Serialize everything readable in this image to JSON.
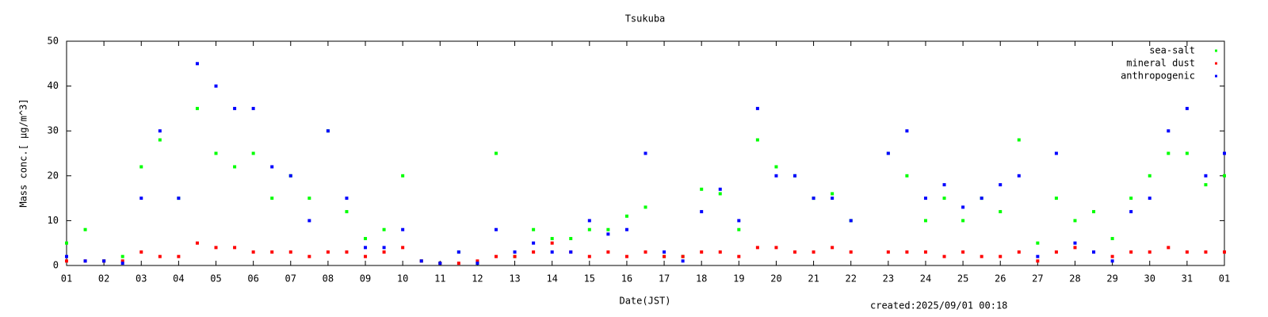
{
  "chart_data": {
    "type": "scatter",
    "title": "Tsukuba",
    "x_label": "Date(JST)",
    "y_label": "Mass conc.[ μg/m^3]",
    "footnote": "created:2025/09/01 00:18",
    "legend": "upper right",
    "x": [
      1,
      1.5,
      2,
      2.5,
      3,
      3.5,
      4,
      4.5,
      5,
      5.5,
      6,
      6.5,
      7,
      7.5,
      8,
      8.5,
      9,
      9.5,
      10,
      10.5,
      11,
      11.5,
      12,
      12.5,
      13,
      13.5,
      14,
      14.5,
      15,
      15.5,
      16,
      16.5,
      17,
      17.5,
      18,
      18.5,
      19,
      19.5,
      20,
      20.5,
      21,
      21.5,
      22,
      22.5,
      23,
      23.5,
      24,
      24.5,
      25,
      25.5,
      26,
      26.5,
      27,
      27.5,
      28,
      28.5,
      29,
      29.5,
      30,
      30.5,
      31,
      31.5,
      32
    ],
    "series": [
      {
        "name": "sea-salt",
        "color": "#00ff00",
        "values": [
          5,
          8,
          1,
          2,
          22,
          28,
          15,
          35,
          25,
          22,
          25,
          15,
          20,
          15,
          30,
          12,
          6,
          8,
          20,
          1,
          0.5,
          3,
          0.5,
          25,
          2,
          8,
          6,
          6,
          8,
          8,
          11,
          13,
          2,
          2,
          17,
          16,
          8,
          28,
          22,
          20,
          15,
          16,
          10,
          null,
          25,
          20,
          10,
          15,
          10,
          15,
          12,
          28,
          5,
          15,
          10,
          12,
          6,
          15,
          20,
          25,
          25,
          18,
          20
        ]
      },
      {
        "name": "mineral dust",
        "color": "#ff0000",
        "values": [
          1,
          1,
          1,
          1,
          3,
          2,
          2,
          5,
          4,
          4,
          3,
          3,
          3,
          2,
          3,
          3,
          2,
          3,
          4,
          1,
          0.5,
          0.5,
          1,
          2,
          2,
          3,
          5,
          3,
          2,
          3,
          2,
          3,
          2,
          2,
          3,
          3,
          2,
          4,
          4,
          3,
          3,
          4,
          3,
          null,
          3,
          3,
          3,
          2,
          3,
          2,
          2,
          3,
          1,
          3,
          4,
          3,
          2,
          3,
          3,
          4,
          3,
          3,
          3
        ]
      },
      {
        "name": "anthropogenic",
        "color": "#0000ff",
        "values": [
          2,
          1,
          1,
          0.5,
          15,
          30,
          15,
          45,
          40,
          35,
          35,
          22,
          20,
          10,
          30,
          15,
          4,
          4,
          8,
          1,
          0.5,
          3,
          0.5,
          8,
          3,
          5,
          3,
          3,
          10,
          7,
          8,
          25,
          3,
          1,
          12,
          17,
          10,
          35,
          20,
          20,
          15,
          15,
          10,
          null,
          25,
          30,
          15,
          18,
          13,
          15,
          18,
          20,
          2,
          25,
          5,
          3,
          1,
          12,
          15,
          30,
          35,
          20,
          25
        ]
      }
    ],
    "xlim": [
      1,
      32
    ],
    "ylim": [
      0,
      50
    ],
    "yticks": [
      0,
      10,
      20,
      30,
      40,
      50
    ],
    "xticks": [
      {
        "value": 1,
        "label": "01"
      },
      {
        "value": 2,
        "label": "02"
      },
      {
        "value": 3,
        "label": "03"
      },
      {
        "value": 4,
        "label": "04"
      },
      {
        "value": 5,
        "label": "05"
      },
      {
        "value": 6,
        "label": "06"
      },
      {
        "value": 7,
        "label": "07"
      },
      {
        "value": 8,
        "label": "08"
      },
      {
        "value": 9,
        "label": "09"
      },
      {
        "value": 10,
        "label": "10"
      },
      {
        "value": 11,
        "label": "11"
      },
      {
        "value": 12,
        "label": "12"
      },
      {
        "value": 13,
        "label": "13"
      },
      {
        "value": 14,
        "label": "14"
      },
      {
        "value": 15,
        "label": "15"
      },
      {
        "value": 16,
        "label": "16"
      },
      {
        "value": 17,
        "label": "17"
      },
      {
        "value": 18,
        "label": "18"
      },
      {
        "value": 19,
        "label": "19"
      },
      {
        "value": 20,
        "label": "20"
      },
      {
        "value": 21,
        "label": "21"
      },
      {
        "value": 22,
        "label": "22"
      },
      {
        "value": 23,
        "label": "23"
      },
      {
        "value": 24,
        "label": "24"
      },
      {
        "value": 25,
        "label": "25"
      },
      {
        "value": 26,
        "label": "26"
      },
      {
        "value": 27,
        "label": "27"
      },
      {
        "value": 28,
        "label": "28"
      },
      {
        "value": 29,
        "label": "29"
      },
      {
        "value": 30,
        "label": "30"
      },
      {
        "value": 31,
        "label": "31"
      },
      {
        "value": 32,
        "label": "01"
      }
    ]
  }
}
